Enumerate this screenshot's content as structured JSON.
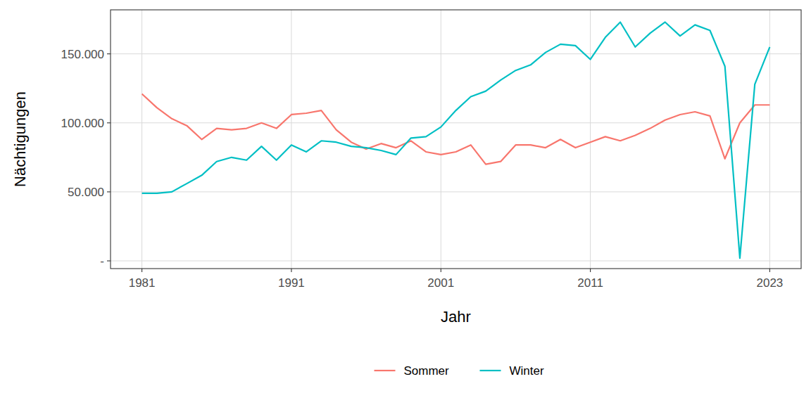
{
  "chart_data": {
    "type": "line",
    "x_label": "Jahr",
    "y_label": "Nächtigungen",
    "x": [
      1981,
      1982,
      1983,
      1984,
      1985,
      1986,
      1987,
      1988,
      1989,
      1990,
      1991,
      1992,
      1993,
      1994,
      1995,
      1996,
      1997,
      1998,
      1999,
      2000,
      2001,
      2002,
      2003,
      2004,
      2005,
      2006,
      2007,
      2008,
      2009,
      2010,
      2011,
      2012,
      2013,
      2014,
      2015,
      2016,
      2017,
      2018,
      2019,
      2020,
      2021,
      2022,
      2023
    ],
    "series": [
      {
        "name": "Sommer",
        "color": "#F8766D",
        "values": [
          121000,
          111000,
          103000,
          98000,
          88000,
          96000,
          95000,
          96000,
          100000,
          96000,
          106000,
          107000,
          109000,
          95000,
          86000,
          81000,
          85000,
          82000,
          87000,
          79000,
          77000,
          79000,
          84000,
          70000,
          72000,
          84000,
          84000,
          82000,
          88000,
          82000,
          86000,
          90000,
          87000,
          91000,
          96000,
          102000,
          106000,
          108000,
          105000,
          74000,
          100000,
          113000,
          113000
        ]
      },
      {
        "name": "Winter",
        "color": "#00BFC4",
        "values": [
          49000,
          49000,
          50000,
          56000,
          62000,
          72000,
          75000,
          73000,
          83000,
          73000,
          84000,
          79000,
          87000,
          86000,
          83000,
          82000,
          80000,
          77000,
          89000,
          90000,
          97000,
          109000,
          119000,
          123000,
          131000,
          138000,
          142000,
          151000,
          157000,
          156000,
          146000,
          162000,
          173000,
          155000,
          165000,
          173000,
          163000,
          171000,
          167000,
          141000,
          2000,
          128000,
          155000
        ]
      }
    ],
    "xlim": [
      1978.9,
      2025.1
    ],
    "xticks": [
      1981,
      1991,
      2001,
      2011,
      2023
    ],
    "ylim": [
      -5600,
      181900
    ],
    "yticks": [
      {
        "value": 0,
        "label": "-"
      },
      {
        "value": 50000,
        "label": "50.000"
      },
      {
        "value": 100000,
        "label": "100.000"
      },
      {
        "value": 150000,
        "label": "150.000"
      }
    ],
    "grid": true,
    "legend": "bottom"
  }
}
